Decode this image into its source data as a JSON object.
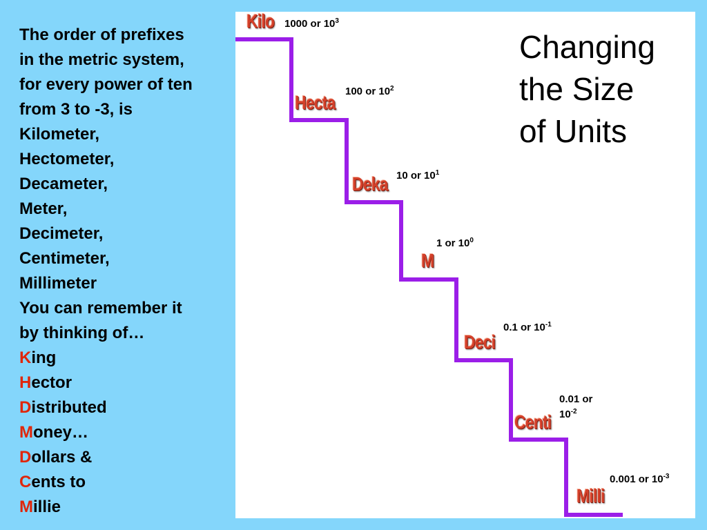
{
  "left_text": {
    "line1": "The order of prefixes",
    "line2": "in the metric system,",
    "line3": "for every power of ten",
    "line4": "from 3 to -3, is",
    "line5": "Kilometer,",
    "line6": "Hectometer,",
    "line7": "Decameter,",
    "line8": "Meter,",
    "line9": "Decimeter,",
    "line10": "Centimeter,",
    "line11": "Millimeter",
    "line12": "You can remember it",
    "line13": "by thinking of…",
    "mnemonic": [
      {
        "initial": "K",
        "rest": "ing"
      },
      {
        "initial": "H",
        "rest": "ector"
      },
      {
        "initial": "D",
        "rest": "istributed"
      },
      {
        "initial": "M",
        "rest": "oney…"
      },
      {
        "initial": "D",
        "rest": "ollars &"
      },
      {
        "initial": "C",
        "rest": "ents to"
      },
      {
        "initial": "M",
        "rest": "illie"
      }
    ]
  },
  "title": {
    "line1": "Changing",
    "line2": "the Size",
    "line3": "of Units"
  },
  "steps": [
    {
      "prefix": "Kilo",
      "value": "1000 or 10",
      "exp": "3"
    },
    {
      "prefix": "Hecta",
      "value": "100 or 10",
      "exp": "2"
    },
    {
      "prefix": "Deka",
      "value": "10 or 10",
      "exp": "1"
    },
    {
      "prefix": "M",
      "value": "1 or 10",
      "exp": "0"
    },
    {
      "prefix": "Deci",
      "value": "0.1 or 10",
      "exp": "-1"
    },
    {
      "prefix": "Centi",
      "value_line1": "0.01 or",
      "value_line2": "10",
      "exp": "-2"
    },
    {
      "prefix": "Milli",
      "value": "0.001 or 10",
      "exp": "-3"
    }
  ],
  "colors": {
    "background": "#84d6fb",
    "stair": "#9b1ee8",
    "prefix": "#d4402a",
    "mnemonic_initial": "#e0260a"
  }
}
